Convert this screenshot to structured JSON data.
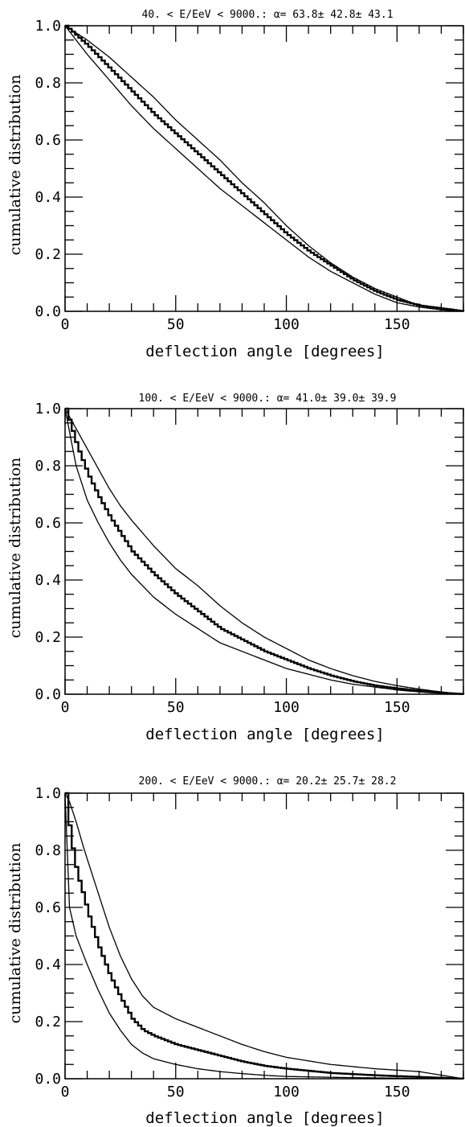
{
  "chart_data": [
    {
      "type": "line",
      "title": "40. < E/EeV < 9000.: α= 63.8± 42.8± 43.1",
      "xlabel": "deflection angle [degrees]",
      "ylabel": "cumulative distribution",
      "xlim": [
        0,
        180
      ],
      "ylim": [
        0,
        1
      ],
      "xticks": [
        "0",
        "50",
        "100",
        "150"
      ],
      "yticks": [
        "0.0",
        "0.2",
        "0.4",
        "0.6",
        "0.8",
        "1.0"
      ],
      "grid": false,
      "x": [
        0,
        10,
        20,
        30,
        40,
        50,
        60,
        70,
        80,
        90,
        100,
        110,
        120,
        130,
        140,
        150,
        160,
        170,
        180
      ],
      "series": [
        {
          "style": "histogram-step",
          "values": [
            1.0,
            0.93,
            0.85,
            0.77,
            0.69,
            0.62,
            0.55,
            0.48,
            0.41,
            0.34,
            0.27,
            0.21,
            0.16,
            0.11,
            0.07,
            0.04,
            0.02,
            0.01,
            0.0
          ]
        },
        {
          "style": "upper-band",
          "values": [
            1.0,
            0.95,
            0.89,
            0.82,
            0.75,
            0.67,
            0.6,
            0.53,
            0.45,
            0.38,
            0.3,
            0.23,
            0.17,
            0.12,
            0.08,
            0.05,
            0.02,
            0.01,
            0.0
          ]
        },
        {
          "style": "lower-band",
          "values": [
            1.0,
            0.9,
            0.81,
            0.72,
            0.64,
            0.57,
            0.5,
            0.43,
            0.37,
            0.31,
            0.25,
            0.19,
            0.14,
            0.1,
            0.06,
            0.03,
            0.015,
            0.005,
            0.0
          ]
        }
      ]
    },
    {
      "type": "line",
      "title": "100. < E/EeV < 9000.: α= 41.0± 39.0± 39.9",
      "xlabel": "deflection angle [degrees]",
      "ylabel": "cumulative distribution",
      "xlim": [
        0,
        180
      ],
      "ylim": [
        0,
        1
      ],
      "xticks": [
        "0",
        "50",
        "100",
        "150"
      ],
      "yticks": [
        "0.0",
        "0.2",
        "0.4",
        "0.6",
        "0.8",
        "1.0"
      ],
      "grid": false,
      "x": [
        0,
        5,
        10,
        15,
        20,
        25,
        30,
        40,
        50,
        60,
        70,
        80,
        90,
        100,
        110,
        120,
        130,
        140,
        150,
        160,
        170,
        180
      ],
      "series": [
        {
          "style": "histogram-step",
          "values": [
            1.0,
            0.87,
            0.77,
            0.69,
            0.62,
            0.56,
            0.5,
            0.42,
            0.35,
            0.29,
            0.23,
            0.19,
            0.15,
            0.12,
            0.09,
            0.065,
            0.045,
            0.03,
            0.02,
            0.012,
            0.005,
            0.0
          ]
        },
        {
          "style": "upper-band",
          "values": [
            1.0,
            0.93,
            0.86,
            0.79,
            0.72,
            0.66,
            0.61,
            0.52,
            0.44,
            0.38,
            0.31,
            0.25,
            0.2,
            0.16,
            0.12,
            0.09,
            0.065,
            0.045,
            0.03,
            0.018,
            0.008,
            0.0
          ]
        },
        {
          "style": "lower-band",
          "values": [
            1.0,
            0.8,
            0.68,
            0.6,
            0.53,
            0.47,
            0.42,
            0.34,
            0.28,
            0.23,
            0.18,
            0.15,
            0.12,
            0.09,
            0.07,
            0.05,
            0.035,
            0.025,
            0.015,
            0.008,
            0.003,
            0.0
          ]
        }
      ]
    },
    {
      "type": "line",
      "title": "200. < E/EeV < 9000.: α= 20.2± 25.7± 28.2",
      "xlabel": "deflection angle [degrees]",
      "ylabel": "cumulative distribution",
      "xlim": [
        0,
        180
      ],
      "ylim": [
        0,
        1
      ],
      "xticks": [
        "0",
        "50",
        "100",
        "150"
      ],
      "yticks": [
        "0.0",
        "0.2",
        "0.4",
        "0.6",
        "0.8",
        "1.0"
      ],
      "grid": false,
      "x": [
        0,
        2,
        5,
        8,
        10,
        15,
        20,
        25,
        30,
        35,
        40,
        50,
        60,
        70,
        80,
        90,
        100,
        120,
        140,
        160,
        180
      ],
      "series": [
        {
          "style": "histogram-step",
          "values": [
            1.0,
            0.85,
            0.72,
            0.64,
            0.58,
            0.46,
            0.36,
            0.28,
            0.21,
            0.17,
            0.15,
            0.12,
            0.1,
            0.08,
            0.06,
            0.045,
            0.035,
            0.02,
            0.012,
            0.006,
            0.0
          ]
        },
        {
          "style": "upper-band",
          "values": [
            1.0,
            0.97,
            0.9,
            0.82,
            0.77,
            0.65,
            0.53,
            0.43,
            0.35,
            0.29,
            0.25,
            0.21,
            0.18,
            0.15,
            0.12,
            0.095,
            0.075,
            0.05,
            0.035,
            0.025,
            0.0
          ]
        },
        {
          "style": "lower-band",
          "values": [
            1.0,
            0.6,
            0.5,
            0.44,
            0.4,
            0.31,
            0.23,
            0.17,
            0.12,
            0.09,
            0.07,
            0.05,
            0.035,
            0.025,
            0.018,
            0.012,
            0.008,
            0.005,
            0.003,
            0.001,
            0.0
          ]
        }
      ]
    }
  ]
}
